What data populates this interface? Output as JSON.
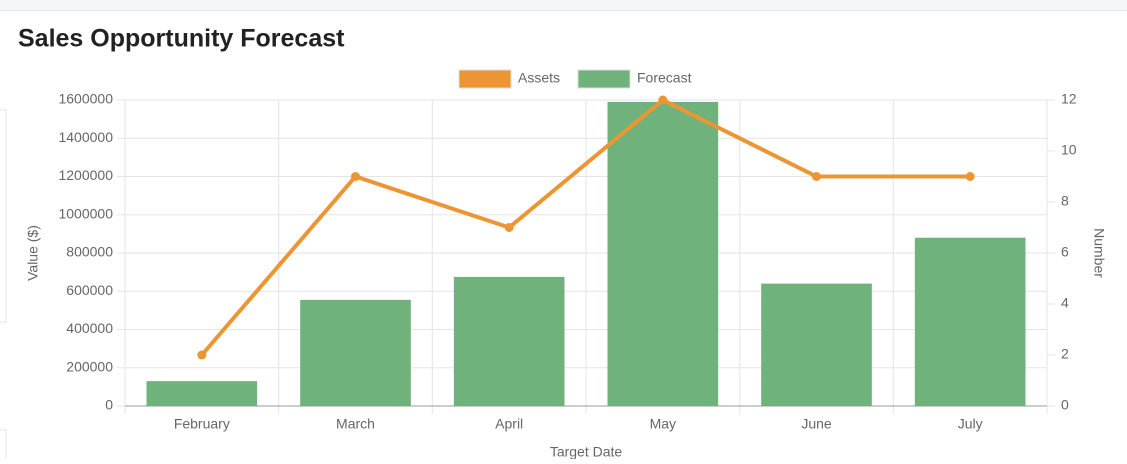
{
  "chart_data": {
    "type": "bar",
    "title": "Sales Opportunity Forecast",
    "x_label": "Target Date",
    "y_label": "Value ($)",
    "y2_label": "Number",
    "categories": [
      "February",
      "March",
      "April",
      "May",
      "June",
      "July"
    ],
    "series": [
      {
        "name": "Assets",
        "type": "line",
        "axis": "y2",
        "color": "#ed9532",
        "values": [
          2,
          9,
          7,
          12,
          9,
          9
        ]
      },
      {
        "name": "Forecast",
        "type": "bar",
        "color": "#6fb27b",
        "values": [
          130000,
          555000,
          675000,
          1590000,
          640000,
          880000
        ]
      }
    ],
    "ylim": [
      0,
      1600000
    ],
    "yticks": [
      0,
      200000,
      400000,
      600000,
      800000,
      1000000,
      1200000,
      1400000,
      1600000
    ],
    "y2lim": [
      0,
      12
    ],
    "y2ticks": [
      0,
      2,
      4,
      6,
      8,
      10,
      12
    ],
    "grid": true,
    "legend": "top"
  }
}
